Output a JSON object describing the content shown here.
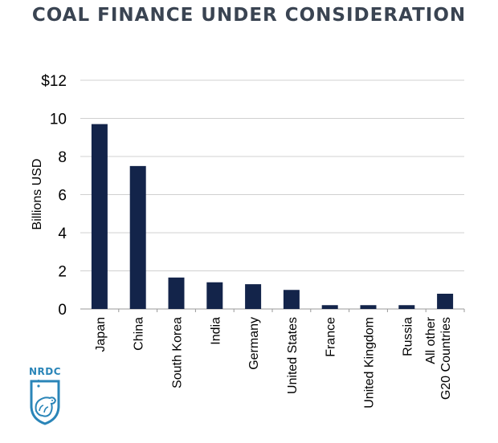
{
  "colors": {
    "bar": "#13244a",
    "title": "#3a4452",
    "text": "#000000",
    "grid": "#d0d0d0",
    "logo": "#2a85b8"
  },
  "chart_data": {
    "type": "bar",
    "title": "COAL FINANCE UNDER CONSIDERATION",
    "ylabel": "Billions USD",
    "ylim": [
      0,
      12
    ],
    "yticks": [
      0,
      2,
      4,
      6,
      8,
      10,
      12
    ],
    "ytick_labels": [
      "0",
      "2",
      "4",
      "6",
      "8",
      "10",
      "$12"
    ],
    "grid": true,
    "categories": [
      [
        "Japan"
      ],
      [
        "China"
      ],
      [
        "South Korea"
      ],
      [
        "India"
      ],
      [
        "Germany"
      ],
      [
        "United States"
      ],
      [
        "France"
      ],
      [
        "United Kingdom"
      ],
      [
        "Russia"
      ],
      [
        "All other",
        "G20 Countries"
      ]
    ],
    "values": [
      9.7,
      7.5,
      1.65,
      1.4,
      1.3,
      1.0,
      0.2,
      0.2,
      0.2,
      0.8
    ]
  },
  "logo": {
    "text": "NRDC"
  }
}
